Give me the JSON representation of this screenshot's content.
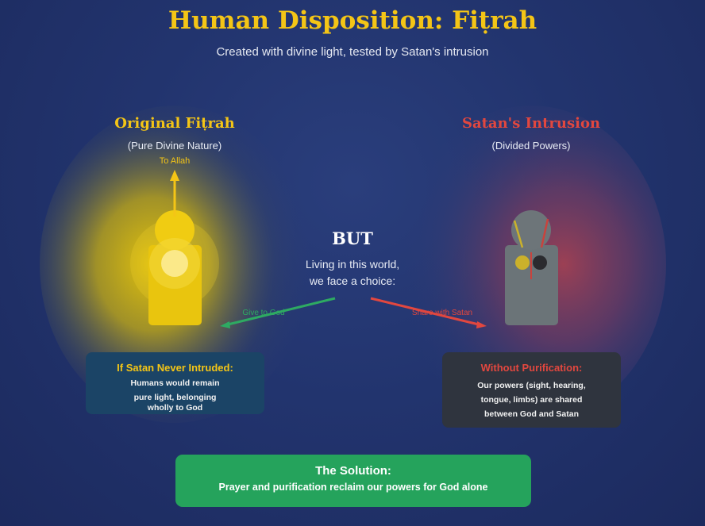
{
  "header": {
    "title": "Human Disposition: Fiṭrah",
    "subtitle": "Created with divine light, tested by Satan's intrusion"
  },
  "left": {
    "title": "Original Fiṭrah",
    "subtitle": "(Pure Divine Nature)",
    "arrow_label": "To Allah",
    "color": "#f4c516"
  },
  "right": {
    "title": "Satan's Intrusion",
    "subtitle": "(Divided Powers)",
    "color": "#e2473f"
  },
  "center": {
    "heading": "BUT",
    "line1": "Living in this world,",
    "line2": "we face a choice:",
    "left_arrow_label": "Give to God",
    "right_arrow_label": "Share with Satan",
    "left_arrow_color": "#2eaa62",
    "right_arrow_color": "#e2473f"
  },
  "box_left": {
    "heading": "If Satan Never Intruded:",
    "line1": "Humans would remain",
    "line2": "pure light, belonging",
    "line3": "wholly to God"
  },
  "box_right": {
    "heading": "Without Purification:",
    "line1": "Our powers (sight, hearing,",
    "line2": "tongue, limbs) are shared",
    "line3": "between God and Satan"
  },
  "solution": {
    "heading": "The Solution:",
    "body": "Prayer and purification reclaim our powers for God alone",
    "color": "#25a35c"
  }
}
